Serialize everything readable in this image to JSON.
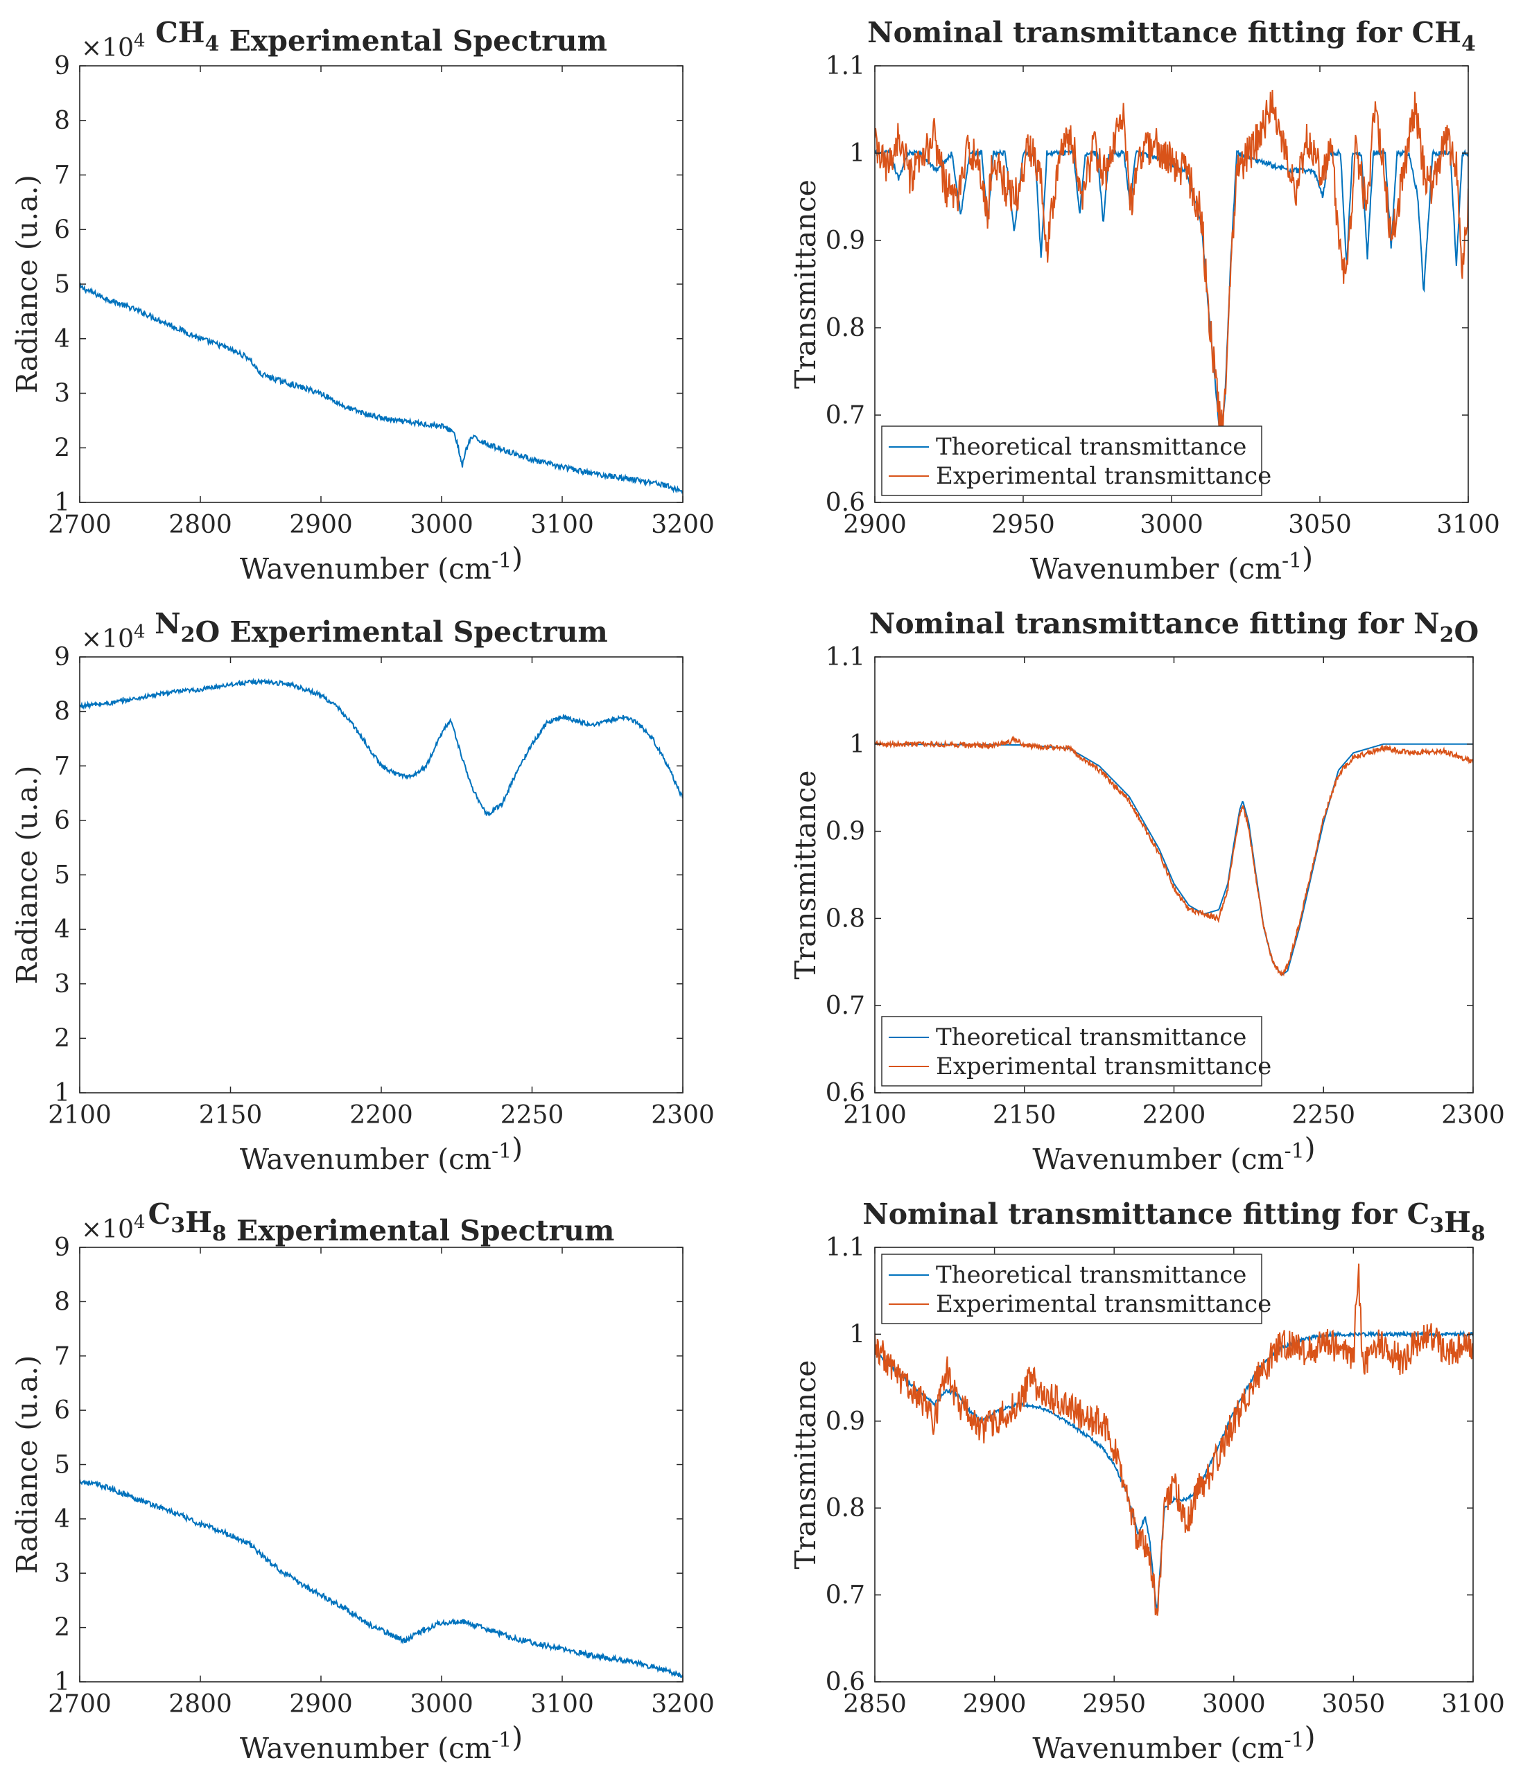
{
  "figure": {
    "colors": {
      "theoretical": "#0072BD",
      "experimental": "#D95319",
      "axis": "#262626"
    }
  },
  "chart_data": [
    {
      "id": "ch4-spectrum",
      "type": "line",
      "title": {
        "text": "Experimental Spectrum",
        "segments": [
          [
            "CH",
            ""
          ],
          [
            "4",
            "sub"
          ],
          [
            " Experimental Spectrum",
            ""
          ]
        ]
      },
      "xlabel": "Wavenumber (cm",
      "xlabel_sup": "-1",
      "xlabel_end": ")",
      "ylabel": "Radiance (u.a.)",
      "exponent": {
        "base": "×10",
        "power": "4"
      },
      "xlim": [
        2700,
        3200
      ],
      "ylim": [
        1,
        9
      ],
      "xticks": [
        2700,
        2800,
        2900,
        3000,
        3100,
        3200
      ],
      "yticks": [
        1,
        2,
        3,
        4,
        5,
        6,
        7,
        8,
        9
      ],
      "legend": null,
      "series": [
        {
          "name": "Radiance",
          "color": "#0072BD",
          "noise": 0.05,
          "x": [
            2700,
            2720,
            2750,
            2780,
            2800,
            2820,
            2840,
            2850,
            2870,
            2900,
            2920,
            2940,
            2960,
            2980,
            3000,
            3010,
            3014,
            3017,
            3020,
            3025,
            3040,
            3060,
            3080,
            3100,
            3120,
            3150,
            3180,
            3200
          ],
          "y": [
            4.95,
            4.75,
            4.5,
            4.2,
            4.0,
            3.85,
            3.65,
            3.35,
            3.2,
            3.0,
            2.75,
            2.6,
            2.5,
            2.45,
            2.4,
            2.3,
            2.0,
            1.65,
            1.95,
            2.2,
            2.05,
            1.9,
            1.75,
            1.65,
            1.55,
            1.45,
            1.35,
            1.2
          ]
        }
      ]
    },
    {
      "id": "ch4-fit",
      "type": "line",
      "title": {
        "text": "Nominal transmittance fitting for CH4",
        "segments": [
          [
            "Nominal transmittance fitting for CH",
            ""
          ],
          [
            "4",
            "sub"
          ]
        ]
      },
      "xlabel": "Wavenumber (cm",
      "xlabel_sup": "-1",
      "xlabel_end": ")",
      "ylabel": "Transmittance",
      "xlim": [
        2900,
        3100
      ],
      "ylim": [
        0.6,
        1.1
      ],
      "xticks": [
        2900,
        2950,
        3000,
        3050,
        3100
      ],
      "yticks": [
        0.6,
        0.7,
        0.8,
        0.9,
        1,
        1.1
      ],
      "legend": {
        "placement": "bottom-left",
        "entries": [
          "Theoretical transmittance",
          "Experimental transmittance"
        ]
      },
      "series": [
        {
          "name": "Theoretical transmittance",
          "color": "#0072BD",
          "noise": 0.003,
          "x": [
            2900,
            2905,
            2908,
            2911,
            2915,
            2921,
            2926,
            2929,
            2932,
            2936,
            2938,
            2940,
            2944,
            2947,
            2950,
            2954,
            2956,
            2958,
            2962,
            2967,
            2969,
            2971,
            2975,
            2977,
            2979,
            2984,
            2986,
            2988,
            2995,
            3005,
            3010,
            3013,
            3016,
            3017,
            3018,
            3020,
            3022,
            3030,
            3040,
            3048,
            3051,
            3053,
            3057,
            3059,
            3061,
            3064,
            3066,
            3068,
            3072,
            3074,
            3076,
            3080,
            3083,
            3085,
            3088,
            3094,
            3096,
            3098,
            3100
          ],
          "y": [
            1.0,
            1.0,
            0.97,
            1.0,
            1.0,
            0.98,
            1.0,
            0.93,
            1.0,
            1.0,
            0.92,
            1.0,
            1.0,
            0.91,
            1.0,
            1.0,
            0.88,
            1.0,
            1.0,
            1.0,
            0.93,
            1.0,
            1.0,
            0.92,
            1.0,
            1.0,
            0.94,
            1.0,
            0.995,
            0.98,
            0.92,
            0.8,
            0.69,
            0.68,
            0.72,
            0.88,
            1.0,
            0.99,
            0.98,
            0.98,
            0.95,
            1.0,
            1.0,
            0.87,
            1.0,
            1.0,
            0.88,
            1.0,
            1.0,
            0.89,
            1.0,
            1.0,
            0.95,
            0.84,
            1.0,
            1.0,
            0.87,
            1.0,
            1.0
          ]
        },
        {
          "name": "Experimental transmittance",
          "color": "#D95319",
          "noise": 0.022,
          "x": [
            2900,
            2904,
            2908,
            2912,
            2916,
            2920,
            2924,
            2928,
            2932,
            2936,
            2938,
            2940,
            2944,
            2948,
            2952,
            2956,
            2958,
            2962,
            2966,
            2970,
            2974,
            2978,
            2982,
            2984,
            2986,
            2990,
            2994,
            3000,
            3005,
            3010,
            3013,
            3016,
            3017,
            3018,
            3020,
            3022,
            3026,
            3030,
            3034,
            3038,
            3042,
            3046,
            3050,
            3054,
            3057,
            3059,
            3062,
            3066,
            3068,
            3071,
            3074,
            3078,
            3082,
            3085,
            3088,
            3092,
            3096,
            3098,
            3100
          ],
          "y": [
            1.01,
            0.98,
            1.02,
            0.97,
            0.99,
            1.02,
            0.96,
            0.95,
            1.01,
            0.97,
            0.93,
            1.0,
            0.96,
            0.95,
            1.01,
            0.98,
            0.89,
            1.0,
            1.02,
            0.95,
            1.01,
            0.97,
            1.03,
            1.05,
            0.94,
            1.0,
            1.01,
            0.99,
            0.98,
            0.93,
            0.8,
            0.7,
            0.69,
            0.72,
            0.88,
            0.98,
            1.0,
            1.02,
            1.06,
            1.0,
            0.96,
            1.02,
            0.98,
            1.0,
            0.88,
            0.86,
            1.01,
            0.93,
            1.05,
            1.0,
            0.9,
            0.97,
            1.05,
            0.98,
            0.96,
            1.02,
            0.99,
            0.87,
            0.94
          ]
        }
      ]
    },
    {
      "id": "n2o-spectrum",
      "type": "line",
      "title": {
        "text": "N2O Experimental Spectrum",
        "segments": [
          [
            "N",
            ""
          ],
          [
            "2",
            "sub"
          ],
          [
            "O Experimental Spectrum",
            ""
          ]
        ]
      },
      "xlabel": "Wavenumber (cm",
      "xlabel_sup": "-1",
      "xlabel_end": ")",
      "ylabel": "Radiance (u.a.)",
      "exponent": {
        "base": "×10",
        "power": "4"
      },
      "xlim": [
        2100,
        2300
      ],
      "ylim": [
        1,
        9
      ],
      "xticks": [
        2100,
        2150,
        2200,
        2250,
        2300
      ],
      "yticks": [
        1,
        2,
        3,
        4,
        5,
        6,
        7,
        8,
        9
      ],
      "legend": null,
      "series": [
        {
          "name": "Radiance",
          "color": "#0072BD",
          "noise": 0.04,
          "x": [
            2100,
            2110,
            2120,
            2130,
            2140,
            2150,
            2160,
            2170,
            2180,
            2185,
            2190,
            2195,
            2200,
            2205,
            2210,
            2215,
            2220,
            2223,
            2226,
            2230,
            2235,
            2240,
            2245,
            2250,
            2255,
            2260,
            2270,
            2280,
            2285,
            2290,
            2295,
            2300
          ],
          "y": [
            8.1,
            8.15,
            8.25,
            8.35,
            8.4,
            8.5,
            8.55,
            8.5,
            8.3,
            8.1,
            7.8,
            7.4,
            7.0,
            6.85,
            6.8,
            7.0,
            7.6,
            7.85,
            7.3,
            6.6,
            6.1,
            6.3,
            6.9,
            7.4,
            7.8,
            7.9,
            7.75,
            7.9,
            7.8,
            7.5,
            7.0,
            6.4
          ]
        }
      ]
    },
    {
      "id": "n2o-fit",
      "type": "line",
      "title": {
        "text": "Nominal transmittance fitting for N2O",
        "segments": [
          [
            "Nominal transmittance fitting for N",
            ""
          ],
          [
            "2",
            "sub"
          ],
          [
            "O",
            ""
          ]
        ]
      },
      "xlabel": "Wavenumber (cm",
      "xlabel_sup": "-1",
      "xlabel_end": ")",
      "ylabel": "Transmittance",
      "xlim": [
        2100,
        2300
      ],
      "ylim": [
        0.6,
        1.1
      ],
      "xticks": [
        2100,
        2150,
        2200,
        2250,
        2300
      ],
      "yticks": [
        0.6,
        0.7,
        0.8,
        0.9,
        1,
        1.1
      ],
      "legend": {
        "placement": "bottom-left",
        "entries": [
          "Theoretical transmittance",
          "Experimental transmittance"
        ]
      },
      "series": [
        {
          "name": "Theoretical transmittance",
          "color": "#0072BD",
          "noise": 0,
          "x": [
            2100,
            2150,
            2165,
            2175,
            2185,
            2195,
            2200,
            2205,
            2210,
            2215,
            2218,
            2220,
            2222,
            2223,
            2225,
            2227,
            2230,
            2233,
            2236,
            2238,
            2242,
            2246,
            2250,
            2255,
            2260,
            2270,
            2300
          ],
          "y": [
            1.0,
            0.999,
            0.995,
            0.975,
            0.94,
            0.88,
            0.84,
            0.815,
            0.805,
            0.81,
            0.84,
            0.885,
            0.925,
            0.935,
            0.91,
            0.86,
            0.79,
            0.75,
            0.735,
            0.74,
            0.79,
            0.85,
            0.91,
            0.97,
            0.99,
            1.0,
            1.0
          ]
        },
        {
          "name": "Experimental transmittance",
          "color": "#D95319",
          "noise": 0.003,
          "x": [
            2100,
            2120,
            2140,
            2147,
            2150,
            2165,
            2175,
            2185,
            2195,
            2200,
            2205,
            2210,
            2215,
            2218,
            2220,
            2222,
            2223,
            2225,
            2227,
            2230,
            2233,
            2236,
            2238,
            2242,
            2246,
            2250,
            2255,
            2260,
            2270,
            2280,
            2290,
            2300
          ],
          "y": [
            1.0,
            1.0,
            0.998,
            1.005,
            0.998,
            0.995,
            0.97,
            0.935,
            0.875,
            0.835,
            0.81,
            0.805,
            0.8,
            0.835,
            0.88,
            0.92,
            0.93,
            0.905,
            0.855,
            0.79,
            0.75,
            0.735,
            0.745,
            0.795,
            0.855,
            0.915,
            0.965,
            0.985,
            0.995,
            0.99,
            0.992,
            0.98
          ]
        }
      ]
    },
    {
      "id": "c3h8-spectrum",
      "type": "line",
      "title": {
        "text": "C3H8 Experimental Spectrum",
        "segments": [
          [
            "C",
            ""
          ],
          [
            "3",
            "sub"
          ],
          [
            "H",
            ""
          ],
          [
            "8",
            "sub"
          ],
          [
            " Experimental Spectrum",
            ""
          ]
        ]
      },
      "xlabel": "Wavenumber (cm",
      "xlabel_sup": "-1",
      "xlabel_end": ")",
      "ylabel": "Radiance (u.a.)",
      "exponent": {
        "base": "×10",
        "power": "4"
      },
      "xlim": [
        2700,
        3200
      ],
      "ylim": [
        1,
        9
      ],
      "xticks": [
        2700,
        2800,
        2900,
        3000,
        3100,
        3200
      ],
      "yticks": [
        1,
        2,
        3,
        4,
        5,
        6,
        7,
        8,
        9
      ],
      "legend": null,
      "series": [
        {
          "name": "Radiance",
          "color": "#0072BD",
          "noise": 0.05,
          "x": [
            2700,
            2720,
            2750,
            2780,
            2800,
            2820,
            2840,
            2860,
            2880,
            2900,
            2920,
            2940,
            2960,
            2970,
            2980,
            3000,
            3020,
            3040,
            3060,
            3080,
            3100,
            3120,
            3150,
            3180,
            3200
          ],
          "y": [
            4.7,
            4.6,
            4.35,
            4.1,
            3.9,
            3.75,
            3.55,
            3.15,
            2.85,
            2.6,
            2.35,
            2.05,
            1.85,
            1.75,
            1.9,
            2.1,
            2.1,
            1.95,
            1.8,
            1.7,
            1.6,
            1.5,
            1.4,
            1.25,
            1.1
          ]
        }
      ]
    },
    {
      "id": "c3h8-fit",
      "type": "line",
      "title": {
        "text": "Nominal transmittance fitting for C3H8",
        "segments": [
          [
            "Nominal transmittance fitting for C",
            ""
          ],
          [
            "3",
            "sub"
          ],
          [
            "H",
            ""
          ],
          [
            "8",
            "sub"
          ]
        ]
      },
      "xlabel": "Wavenumber (cm",
      "xlabel_sup": "-1",
      "xlabel_end": ")",
      "ylabel": "Transmittance",
      "xlim": [
        2850,
        3100
      ],
      "ylim": [
        0.6,
        1.1
      ],
      "xticks": [
        2850,
        2900,
        2950,
        3000,
        3050,
        3100
      ],
      "yticks": [
        0.6,
        0.7,
        0.8,
        0.9,
        1,
        1.1
      ],
      "legend": {
        "placement": "top-left",
        "entries": [
          "Theoretical transmittance",
          "Experimental transmittance"
        ]
      },
      "series": [
        {
          "name": "Theoretical transmittance",
          "color": "#0072BD",
          "noise": 0.002,
          "x": [
            2850,
            2860,
            2870,
            2875,
            2880,
            2885,
            2890,
            2895,
            2900,
            2910,
            2920,
            2930,
            2940,
            2945,
            2950,
            2955,
            2960,
            2963,
            2965,
            2967,
            2968,
            2969,
            2971,
            2975,
            2980,
            2985,
            2990,
            3000,
            3010,
            3020,
            3030,
            3040,
            3100
          ],
          "y": [
            0.98,
            0.955,
            0.93,
            0.92,
            0.935,
            0.93,
            0.91,
            0.9,
            0.91,
            0.92,
            0.915,
            0.9,
            0.88,
            0.87,
            0.85,
            0.82,
            0.77,
            0.79,
            0.76,
            0.7,
            0.68,
            0.72,
            0.8,
            0.81,
            0.81,
            0.82,
            0.85,
            0.91,
            0.96,
            0.985,
            0.995,
            1.0,
            1.0
          ]
        },
        {
          "name": "Experimental transmittance",
          "color": "#D95319",
          "noise": 0.018,
          "x": [
            2850,
            2860,
            2870,
            2875,
            2880,
            2885,
            2890,
            2895,
            2900,
            2910,
            2915,
            2920,
            2930,
            2940,
            2945,
            2950,
            2955,
            2960,
            2963,
            2965,
            2967,
            2968,
            2969,
            2971,
            2975,
            2980,
            2985,
            2990,
            3000,
            3010,
            3020,
            3030,
            3040,
            3050,
            3052,
            3054,
            3060,
            3070,
            3080,
            3090,
            3100
          ],
          "y": [
            0.99,
            0.95,
            0.92,
            0.9,
            0.96,
            0.92,
            0.91,
            0.89,
            0.9,
            0.92,
            0.95,
            0.93,
            0.92,
            0.9,
            0.9,
            0.87,
            0.82,
            0.76,
            0.76,
            0.74,
            0.7,
            0.67,
            0.72,
            0.8,
            0.83,
            0.78,
            0.82,
            0.84,
            0.9,
            0.95,
            0.99,
            0.98,
            0.99,
            0.97,
            1.08,
            0.96,
            0.99,
            0.97,
            1.0,
            0.98,
            0.99
          ]
        }
      ]
    }
  ]
}
